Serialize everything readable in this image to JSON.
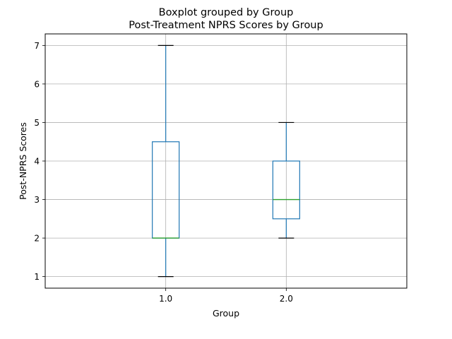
{
  "chart_data": {
    "type": "boxplot",
    "suptitle": "Boxplot grouped by Group",
    "title": "Post-Treatment NPRS Scores by Group",
    "xlabel": "Group",
    "ylabel": "Post-NPRS Scores",
    "categories": [
      "1.0",
      "2.0"
    ],
    "yticks": [
      1,
      2,
      3,
      4,
      5,
      6,
      7
    ],
    "ylim": [
      0.7,
      7.3
    ],
    "grid": true,
    "boxes": [
      {
        "category": "1.0",
        "whisker_low": 1,
        "q1": 2,
        "median": 2,
        "q3": 4.5,
        "whisker_high": 7
      },
      {
        "category": "2.0",
        "whisker_low": 2,
        "q1": 2.5,
        "median": 3,
        "q3": 4,
        "whisker_high": 5
      }
    ],
    "colors": {
      "box": "#1f77b4",
      "median": "#2ca02c",
      "cap": "#000000",
      "grid": "#b0b0b0"
    }
  }
}
